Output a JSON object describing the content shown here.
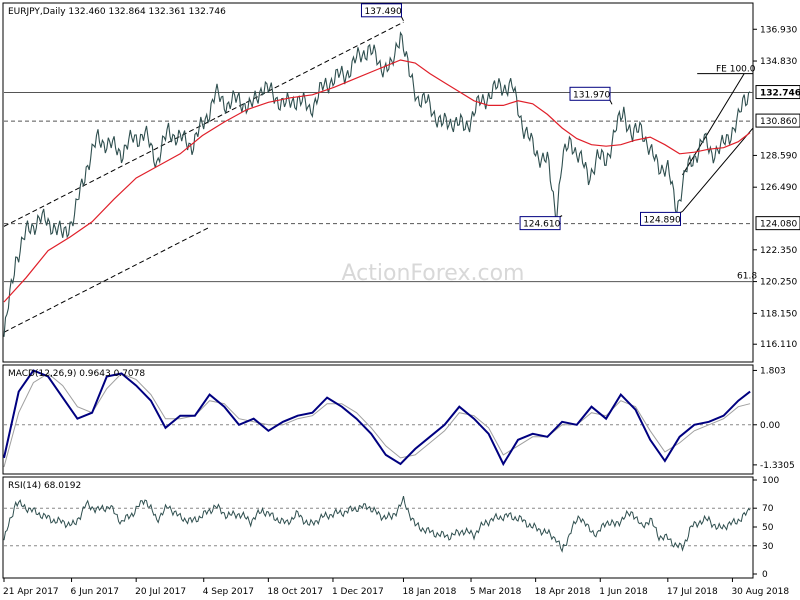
{
  "colors": {
    "price": "#2f4f4f",
    "sma": "#e0202a",
    "macd": "#000080",
    "signal": "#a0a0a0",
    "rsi": "#2f4f4f",
    "boxBg": "#ffffff",
    "boxBorder": "#000080",
    "gridLine": "#000000"
  },
  "chart_data": [
    {
      "type": "line",
      "title": "EURJPY,Daily  132.460 132.864 132.361 132.746",
      "watermark": "ActionForex.com",
      "ylim": [
        115.0,
        138.6
      ],
      "y_ticks": [
        "136.930",
        "134.830",
        "132.746",
        "130.860",
        "128.590",
        "126.490",
        "124.080",
        "122.350",
        "120.250",
        "118.150",
        "116.110"
      ],
      "last_price": "132.746",
      "x_ticks": [
        "21 Apr 2017",
        "6 Jun 2017",
        "20 Jul 2017",
        "4 Sep 2017",
        "18 Oct 2017",
        "1 Dec 2017",
        "18 Jan 2018",
        "5 Mar 2018",
        "18 Apr 2018",
        "1 Jun 2018",
        "17 Jul 2018",
        "30 Aug 2018"
      ],
      "x_tick_idx": [
        0,
        46,
        90,
        136,
        180,
        224,
        272,
        318,
        362,
        406,
        452,
        496
      ],
      "n_days": 510,
      "series": [
        {
          "x": [
            0,
            8,
            16,
            24,
            32,
            40,
            48,
            56,
            64,
            72,
            80,
            88,
            96,
            104,
            112,
            120,
            128,
            136,
            144,
            152,
            160,
            168,
            176,
            184,
            192,
            200,
            208,
            216,
            224,
            232,
            240,
            248,
            256,
            264,
            270,
            276,
            282,
            290,
            298,
            306,
            314,
            322,
            330,
            338,
            346,
            354,
            362,
            370,
            376,
            380,
            386,
            392,
            398,
            404,
            410,
            416,
            422,
            428,
            434,
            440,
            446,
            452,
            458,
            464,
            470,
            476,
            482,
            488,
            494,
            500,
            504,
            508
          ],
          "values": [
            116.6,
            121.8,
            123.6,
            124.4,
            124.1,
            123.3,
            124.6,
            127.8,
            129.7,
            129.3,
            128.8,
            129.7,
            130.0,
            128.2,
            130.2,
            129.7,
            129.3,
            130.7,
            132.6,
            132.0,
            132.3,
            131.7,
            133.2,
            132.5,
            131.9,
            132.4,
            131.6,
            132.9,
            133.7,
            133.9,
            134.9,
            135.7,
            134.6,
            134.3,
            136.9,
            133.9,
            132.4,
            131.9,
            130.6,
            130.9,
            130.4,
            131.8,
            132.6,
            133.2,
            133.1,
            130.4,
            128.8,
            128.2,
            124.7,
            128.2,
            129.6,
            128.4,
            127.2,
            128.4,
            128.3,
            130.1,
            131.6,
            129.7,
            130.6,
            128.7,
            128.0,
            127.6,
            125.1,
            127.4,
            128.5,
            129.6,
            128.8,
            129.0,
            130.0,
            130.9,
            132.3,
            132.8
          ],
          "style": "price"
        },
        {
          "x": [
            0,
            15,
            30,
            45,
            60,
            75,
            90,
            105,
            120,
            135,
            150,
            165,
            180,
            195,
            210,
            225,
            240,
            255,
            270,
            280,
            290,
            300,
            310,
            320,
            330,
            340,
            350,
            360,
            370,
            380,
            390,
            400,
            410,
            420,
            430,
            440,
            450,
            460,
            470,
            480,
            490,
            500,
            508
          ],
          "values": [
            118.9,
            120.5,
            122.3,
            123.2,
            124.2,
            125.7,
            127.1,
            127.9,
            128.7,
            129.9,
            130.8,
            131.6,
            132.1,
            132.4,
            132.6,
            133.1,
            133.7,
            134.3,
            134.9,
            134.7,
            134.0,
            133.4,
            132.8,
            132.2,
            131.9,
            131.9,
            132.2,
            132.0,
            131.3,
            130.4,
            129.7,
            129.3,
            129.2,
            129.3,
            129.6,
            129.8,
            129.3,
            128.7,
            128.8,
            129.0,
            129.1,
            129.5,
            130.1
          ],
          "style": "sma"
        }
      ],
      "levels": [
        {
          "value": 132.746,
          "label": "132.746",
          "style": "thin"
        },
        {
          "value": 130.86,
          "label": "130.860",
          "style": "dashed"
        },
        {
          "value": 124.08,
          "label": "124.080",
          "style": "dashed"
        },
        {
          "value": 120.25,
          "label": "61.8",
          "style": "thin"
        }
      ],
      "channel": {
        "upper_start": {
          "x": 0,
          "y": 123.9
        },
        "upper_end": {
          "x": 272,
          "y": 137.4
        },
        "lower_start": {
          "x": 0,
          "y": 116.9
        }
      },
      "rising_channel": {
        "lower_start": {
          "x": 462,
          "y": 124.89
        },
        "lower_end": {
          "x": 510,
          "y": 130.4
        },
        "upper_start": {
          "x": 462,
          "y": 127.3
        },
        "upper_end": {
          "x": 504,
          "y": 134.0
        }
      },
      "fe_line": {
        "x_start": 462,
        "x_end": 510,
        "value": 134.0,
        "label": "FE 100.0"
      },
      "annotations": [
        {
          "label": "137.490",
          "x": 272,
          "y": 137.49,
          "side": "above"
        },
        {
          "label": "131.970",
          "x": 414,
          "y": 131.97,
          "side": "above"
        },
        {
          "label": "124.610",
          "x": 380,
          "y": 124.61,
          "side": "below"
        },
        {
          "label": "124.890",
          "x": 462,
          "y": 124.89,
          "side": "below"
        }
      ]
    },
    {
      "type": "line",
      "title": "MACD(12,26,9) 0.9643 0.7078",
      "ylim": [
        -1.6,
        1.95
      ],
      "y_ticks": [
        "1.803",
        "0.00",
        "-1.3305"
      ],
      "series": [
        {
          "name": "MACD",
          "x": [
            0,
            10,
            20,
            30,
            40,
            50,
            60,
            70,
            80,
            90,
            100,
            110,
            120,
            130,
            140,
            150,
            160,
            170,
            180,
            190,
            200,
            210,
            220,
            230,
            240,
            250,
            260,
            270,
            280,
            290,
            300,
            310,
            320,
            330,
            340,
            350,
            360,
            370,
            380,
            390,
            400,
            410,
            420,
            430,
            440,
            450,
            460,
            470,
            480,
            490,
            500,
            508
          ],
          "values": [
            -1.1,
            1.1,
            1.8,
            1.6,
            0.9,
            0.2,
            0.4,
            1.6,
            1.7,
            1.3,
            0.8,
            -0.1,
            0.3,
            0.3,
            1.0,
            0.6,
            0.0,
            0.2,
            -0.2,
            0.1,
            0.3,
            0.4,
            0.9,
            0.6,
            0.2,
            -0.3,
            -1.0,
            -1.3,
            -0.8,
            -0.4,
            0.0,
            0.6,
            0.2,
            -0.3,
            -1.3,
            -0.5,
            -0.3,
            -0.4,
            0.1,
            0.0,
            0.6,
            0.2,
            1.0,
            0.5,
            -0.5,
            -1.2,
            -0.4,
            0.0,
            0.1,
            0.3,
            0.8,
            1.1
          ],
          "style": "macd"
        },
        {
          "name": "Signal",
          "x": [
            0,
            10,
            20,
            30,
            40,
            50,
            60,
            70,
            80,
            90,
            100,
            110,
            120,
            130,
            140,
            150,
            160,
            170,
            180,
            190,
            200,
            210,
            220,
            230,
            240,
            250,
            260,
            270,
            280,
            290,
            300,
            310,
            320,
            330,
            340,
            350,
            360,
            370,
            380,
            390,
            400,
            410,
            420,
            430,
            440,
            450,
            460,
            470,
            480,
            490,
            500,
            508
          ],
          "values": [
            -1.4,
            0.4,
            1.4,
            1.7,
            1.3,
            0.6,
            0.4,
            1.2,
            1.7,
            1.5,
            1.0,
            0.2,
            0.2,
            0.3,
            0.8,
            0.7,
            0.2,
            0.1,
            0.0,
            0.0,
            0.2,
            0.3,
            0.7,
            0.7,
            0.4,
            -0.1,
            -0.7,
            -1.1,
            -1.0,
            -0.6,
            -0.2,
            0.4,
            0.3,
            -0.1,
            -1.0,
            -0.7,
            -0.4,
            -0.4,
            0.0,
            0.0,
            0.4,
            0.3,
            0.8,
            0.6,
            -0.2,
            -0.9,
            -0.6,
            -0.2,
            0.0,
            0.2,
            0.6,
            0.7
          ],
          "style": "signal"
        }
      ]
    },
    {
      "type": "line",
      "title": "RSI(14) 68.0192",
      "ylim": [
        0,
        100
      ],
      "y_ticks": [
        "100",
        "70",
        "50",
        "30",
        "0"
      ],
      "levels": [
        70,
        30
      ],
      "series": [
        {
          "x": [
            0,
            8,
            16,
            24,
            32,
            40,
            48,
            56,
            64,
            72,
            80,
            88,
            96,
            104,
            112,
            120,
            128,
            136,
            144,
            152,
            160,
            168,
            176,
            184,
            192,
            200,
            208,
            216,
            224,
            232,
            240,
            248,
            256,
            264,
            272,
            280,
            288,
            296,
            304,
            312,
            320,
            328,
            336,
            344,
            352,
            360,
            368,
            376,
            380,
            386,
            392,
            398,
            404,
            410,
            416,
            422,
            428,
            434,
            440,
            446,
            452,
            458,
            462,
            468,
            474,
            480,
            486,
            492,
            498,
            504,
            508
          ],
          "values": [
            36,
            76,
            70,
            64,
            58,
            55,
            52,
            74,
            68,
            72,
            55,
            65,
            80,
            58,
            72,
            60,
            56,
            63,
            72,
            62,
            64,
            56,
            68,
            60,
            54,
            64,
            52,
            60,
            64,
            66,
            70,
            72,
            62,
            60,
            78,
            52,
            46,
            42,
            40,
            46,
            42,
            55,
            60,
            62,
            58,
            50,
            45,
            38,
            24,
            46,
            62,
            48,
            42,
            56,
            52,
            60,
            66,
            50,
            58,
            40,
            38,
            30,
            28,
            50,
            56,
            58,
            48,
            52,
            55,
            62,
            68
          ],
          "style": "rsi"
        }
      ]
    }
  ]
}
